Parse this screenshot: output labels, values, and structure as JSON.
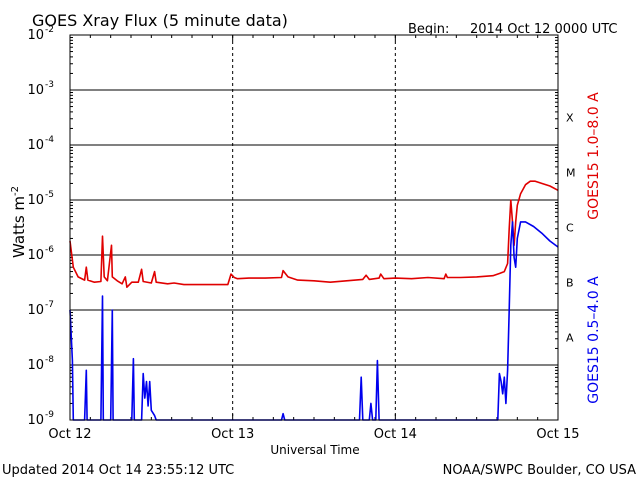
{
  "header": {
    "title": "GOES Xray Flux (5 minute data)",
    "begin_label": "Begin:",
    "begin_value": "2014 Oct 12 0000 UTC"
  },
  "footer": {
    "updated": "Updated 2014 Oct 14 23:55:12 UTC",
    "credit": "NOAA/SWPC Boulder, CO USA"
  },
  "chart_data": {
    "type": "line",
    "title": "GOES Xray Flux (5 minute data)",
    "xlabel": "Universal Time",
    "ylabel_base": "Watts m",
    "ylabel_exp": "-2",
    "yscale": "log",
    "xlim": [
      0,
      3
    ],
    "ylim_exp": [
      -9,
      -2
    ],
    "x_unit": "days since 2014 Oct 12 0000 UTC",
    "x_ticks": [
      {
        "x": 0,
        "label": "Oct 12"
      },
      {
        "x": 1,
        "label": "Oct 13"
      },
      {
        "x": 2,
        "label": "Oct 14"
      },
      {
        "x": 3,
        "label": "Oct 15"
      }
    ],
    "y_ticks": [
      {
        "exp": -9,
        "base": "10",
        "sup": "-9"
      },
      {
        "exp": -8,
        "base": "10",
        "sup": "-8"
      },
      {
        "exp": -7,
        "base": "10",
        "sup": "-7"
      },
      {
        "exp": -6,
        "base": "10",
        "sup": "-6"
      },
      {
        "exp": -5,
        "base": "10",
        "sup": "-5"
      },
      {
        "exp": -4,
        "base": "10",
        "sup": "-4"
      },
      {
        "exp": -3,
        "base": "10",
        "sup": "-3"
      },
      {
        "exp": -2,
        "base": "10",
        "sup": "-2"
      }
    ],
    "flare_classes": [
      {
        "label": "A",
        "exp": -7.5
      },
      {
        "label": "B",
        "exp": -6.5
      },
      {
        "label": "C",
        "exp": -5.5
      },
      {
        "label": "M",
        "exp": -4.5
      },
      {
        "label": "X",
        "exp": -3.5
      }
    ],
    "grid": true,
    "series": [
      {
        "name": "GOES15 1.0–8.0 A",
        "color": "#e00000",
        "points": [
          [
            0.0,
            1.8e-06
          ],
          [
            0.02,
            6e-07
          ],
          [
            0.05,
            4e-07
          ],
          [
            0.09,
            3.5e-07
          ],
          [
            0.1,
            6e-07
          ],
          [
            0.11,
            3.5e-07
          ],
          [
            0.15,
            3.2e-07
          ],
          [
            0.19,
            3.3e-07
          ],
          [
            0.2,
            2.2e-06
          ],
          [
            0.21,
            4e-07
          ],
          [
            0.23,
            3.4e-07
          ],
          [
            0.255,
            1.5e-06
          ],
          [
            0.26,
            4e-07
          ],
          [
            0.29,
            3.4e-07
          ],
          [
            0.32,
            3e-07
          ],
          [
            0.34,
            4e-07
          ],
          [
            0.35,
            2.6e-07
          ],
          [
            0.38,
            3.2e-07
          ],
          [
            0.42,
            3.2e-07
          ],
          [
            0.44,
            5.5e-07
          ],
          [
            0.45,
            3.3e-07
          ],
          [
            0.5,
            3.1e-07
          ],
          [
            0.52,
            5e-07
          ],
          [
            0.53,
            3.2e-07
          ],
          [
            0.6,
            3e-07
          ],
          [
            0.64,
            3.1e-07
          ],
          [
            0.7,
            2.9e-07
          ],
          [
            0.8,
            2.9e-07
          ],
          [
            0.9,
            2.9e-07
          ],
          [
            0.97,
            2.9e-07
          ],
          [
            0.99,
            4.5e-07
          ],
          [
            1.01,
            3.9e-07
          ],
          [
            1.03,
            3.7e-07
          ],
          [
            1.1,
            3.8e-07
          ],
          [
            1.2,
            3.8e-07
          ],
          [
            1.3,
            3.9e-07
          ],
          [
            1.31,
            5.2e-07
          ],
          [
            1.34,
            4e-07
          ],
          [
            1.4,
            3.5e-07
          ],
          [
            1.5,
            3.4e-07
          ],
          [
            1.6,
            3.2e-07
          ],
          [
            1.7,
            3.4e-07
          ],
          [
            1.8,
            3.6e-07
          ],
          [
            1.82,
            4.3e-07
          ],
          [
            1.84,
            3.6e-07
          ],
          [
            1.9,
            3.8e-07
          ],
          [
            1.91,
            4.5e-07
          ],
          [
            1.93,
            3.7e-07
          ],
          [
            2.0,
            3.8e-07
          ],
          [
            2.1,
            3.7e-07
          ],
          [
            2.2,
            3.9e-07
          ],
          [
            2.3,
            3.7e-07
          ],
          [
            2.31,
            4.5e-07
          ],
          [
            2.32,
            3.9e-07
          ],
          [
            2.4,
            3.9e-07
          ],
          [
            2.5,
            4e-07
          ],
          [
            2.55,
            4.1e-07
          ],
          [
            2.6,
            4.2e-07
          ],
          [
            2.64,
            4.6e-07
          ],
          [
            2.67,
            5e-07
          ],
          [
            2.69,
            7e-07
          ],
          [
            2.7,
            3e-06
          ],
          [
            2.71,
            1e-05
          ],
          [
            2.72,
            4e-06
          ],
          [
            2.73,
            1.5e-06
          ],
          [
            2.74,
            4e-06
          ],
          [
            2.75,
            8e-06
          ],
          [
            2.77,
            1.3e-05
          ],
          [
            2.8,
            1.9e-05
          ],
          [
            2.83,
            2.2e-05
          ],
          [
            2.86,
            2.2e-05
          ],
          [
            2.9,
            2e-05
          ],
          [
            2.95,
            1.8e-05
          ],
          [
            3.0,
            1.5e-05
          ]
        ]
      },
      {
        "name": "GOES15 0.5–4.0 A",
        "color": "#0000ee",
        "points": [
          [
            0.0,
            1e-07
          ],
          [
            0.005,
            5e-08
          ],
          [
            0.015,
            1.2e-08
          ],
          [
            0.02,
            1e-09
          ],
          [
            0.09,
            1e-09
          ],
          [
            0.1,
            8e-09
          ],
          [
            0.105,
            1e-09
          ],
          [
            0.19,
            1e-09
          ],
          [
            0.2,
            1.8e-07
          ],
          [
            0.205,
            1e-09
          ],
          [
            0.25,
            1e-09
          ],
          [
            0.255,
            1e-08
          ],
          [
            0.26,
            1e-07
          ],
          [
            0.265,
            1e-09
          ],
          [
            0.38,
            1e-09
          ],
          [
            0.39,
            1.3e-08
          ],
          [
            0.395,
            1e-09
          ],
          [
            0.44,
            1e-09
          ],
          [
            0.45,
            7e-09
          ],
          [
            0.46,
            2.5e-09
          ],
          [
            0.47,
            5e-09
          ],
          [
            0.48,
            1.8e-09
          ],
          [
            0.49,
            5e-09
          ],
          [
            0.5,
            1.5e-09
          ],
          [
            0.52,
            1.2e-09
          ],
          [
            0.53,
            1e-09
          ],
          [
            1.3,
            1e-09
          ],
          [
            1.31,
            1.3e-09
          ],
          [
            1.32,
            1e-09
          ],
          [
            1.78,
            1e-09
          ],
          [
            1.79,
            6e-09
          ],
          [
            1.8,
            1e-09
          ],
          [
            1.84,
            1e-09
          ],
          [
            1.85,
            2e-09
          ],
          [
            1.86,
            1e-09
          ],
          [
            1.88,
            1e-09
          ],
          [
            1.89,
            1.2e-08
          ],
          [
            1.9,
            1e-09
          ],
          [
            2.63,
            1e-09
          ],
          [
            2.64,
            7e-09
          ],
          [
            2.65,
            5e-09
          ],
          [
            2.66,
            3e-09
          ],
          [
            2.67,
            6e-09
          ],
          [
            2.68,
            2e-09
          ],
          [
            2.69,
            8e-09
          ],
          [
            2.7,
            1e-07
          ],
          [
            2.71,
            1.5e-06
          ],
          [
            2.72,
            4e-06
          ],
          [
            2.73,
            9e-07
          ],
          [
            2.74,
            6e-07
          ],
          [
            2.75,
            2e-06
          ],
          [
            2.77,
            4e-06
          ],
          [
            2.8,
            4e-06
          ],
          [
            2.85,
            3.3e-06
          ],
          [
            2.9,
            2.5e-06
          ],
          [
            2.95,
            1.8e-06
          ],
          [
            3.0,
            1.4e-06
          ]
        ]
      }
    ]
  }
}
